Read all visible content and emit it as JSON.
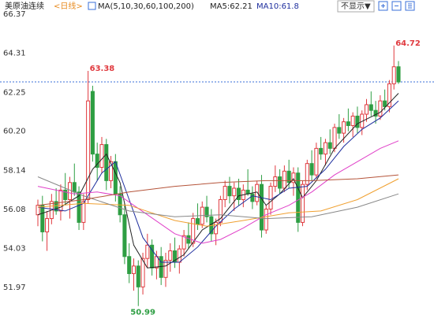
{
  "header": {
    "symbol": "美原油连续",
    "period": "<日线>",
    "ma_params": "MA(5,10,30,60,100,200)",
    "ma5": "MA5:62.21",
    "ma10": "MA10:61.8",
    "toggle": "不显示▼"
  },
  "chart_data": {
    "type": "candlestick",
    "ylim": [
      50.52,
      66.37
    ],
    "yticks": [
      66.37,
      64.31,
      62.25,
      {
        "value": 60.2,
        "label": "60.20"
      },
      58.14,
      56.08,
      54.03,
      51.97
    ],
    "grid": false,
    "up_color": "#e0393e",
    "down_color": "#2e9e43",
    "ohlc": [
      [
        55.8,
        56.6,
        55.2,
        56.3
      ],
      [
        56.3,
        56.8,
        54.4,
        54.9
      ],
      [
        54.9,
        56.0,
        53.9,
        55.6
      ],
      [
        55.6,
        56.9,
        55.3,
        56.5
      ],
      [
        56.5,
        57.2,
        55.8,
        56.0
      ],
      [
        56.0,
        57.4,
        55.5,
        57.1
      ],
      [
        57.1,
        58.0,
        56.3,
        56.6
      ],
      [
        56.6,
        57.8,
        55.6,
        57.5
      ],
      [
        57.5,
        58.5,
        56.8,
        57.0
      ],
      [
        57.0,
        57.3,
        55.0,
        55.4
      ],
      [
        55.4,
        56.9,
        55.0,
        56.5
      ],
      [
        56.6,
        63.38,
        56.4,
        61.8
      ],
      [
        62.3,
        62.6,
        58.6,
        59.0
      ],
      [
        59.0,
        59.6,
        57.6,
        58.3
      ],
      [
        58.3,
        59.9,
        58.0,
        59.5
      ],
      [
        59.5,
        59.8,
        57.1,
        57.6
      ],
      [
        57.6,
        58.9,
        57.2,
        58.6
      ],
      [
        58.6,
        59.0,
        56.5,
        56.9
      ],
      [
        56.9,
        57.3,
        55.4,
        55.8
      ],
      [
        55.8,
        56.4,
        53.2,
        53.6
      ],
      [
        53.6,
        54.3,
        52.2,
        52.7
      ],
      [
        52.7,
        53.5,
        51.8,
        53.1
      ],
      [
        53.1,
        53.4,
        50.99,
        52.0
      ],
      [
        52.0,
        53.8,
        51.6,
        53.5
      ],
      [
        53.5,
        54.8,
        53.0,
        54.2
      ],
      [
        54.2,
        54.5,
        52.6,
        53.0
      ],
      [
        53.0,
        53.9,
        52.4,
        53.6
      ],
      [
        53.6,
        54.1,
        52.1,
        52.5
      ],
      [
        52.5,
        53.8,
        52.0,
        53.4
      ],
      [
        53.4,
        54.3,
        52.8,
        53.9
      ],
      [
        53.9,
        54.6,
        53.0,
        53.3
      ],
      [
        53.3,
        54.2,
        52.7,
        54.0
      ],
      [
        54.0,
        55.0,
        53.6,
        54.7
      ],
      [
        54.7,
        55.4,
        54.0,
        54.3
      ],
      [
        54.3,
        55.9,
        54.1,
        55.6
      ],
      [
        55.6,
        56.4,
        55.0,
        55.3
      ],
      [
        55.3,
        56.5,
        55.1,
        56.2
      ],
      [
        56.2,
        56.8,
        55.4,
        55.7
      ],
      [
        55.7,
        56.1,
        54.4,
        54.8
      ],
      [
        54.8,
        55.6,
        54.2,
        55.4
      ],
      [
        55.4,
        56.8,
        55.2,
        56.6
      ],
      [
        56.6,
        57.6,
        56.2,
        57.3
      ],
      [
        57.3,
        57.8,
        56.4,
        56.8
      ],
      [
        56.8,
        57.5,
        56.0,
        57.2
      ],
      [
        57.2,
        57.7,
        56.3,
        56.6
      ],
      [
        56.6,
        57.4,
        56.2,
        57.1
      ],
      [
        57.1,
        58.2,
        56.8,
        56.9
      ],
      [
        56.9,
        57.3,
        56.1,
        56.5
      ],
      [
        56.5,
        57.6,
        56.3,
        57.4
      ],
      [
        57.4,
        57.9,
        54.6,
        55.0
      ],
      [
        55.0,
        56.3,
        54.8,
        56.1
      ],
      [
        56.1,
        57.5,
        55.8,
        57.3
      ],
      [
        57.3,
        58.4,
        57.0,
        57.8
      ],
      [
        57.8,
        58.2,
        56.9,
        57.2
      ],
      [
        57.2,
        58.4,
        57.0,
        58.1
      ],
      [
        58.1,
        58.7,
        57.2,
        57.5
      ],
      [
        57.5,
        58.3,
        56.8,
        58.0
      ],
      [
        58.0,
        58.3,
        54.9,
        55.4
      ],
      [
        55.4,
        57.6,
        55.2,
        57.4
      ],
      [
        57.4,
        58.7,
        57.1,
        58.5
      ],
      [
        58.5,
        59.2,
        57.6,
        57.9
      ],
      [
        57.9,
        59.6,
        57.7,
        59.3
      ],
      [
        59.3,
        59.9,
        58.7,
        59.0
      ],
      [
        59.0,
        59.8,
        58.4,
        59.6
      ],
      [
        59.6,
        60.3,
        59.0,
        59.3
      ],
      [
        59.3,
        60.6,
        59.1,
        60.4
      ],
      [
        60.4,
        61.1,
        59.8,
        60.1
      ],
      [
        60.1,
        60.9,
        59.6,
        60.7
      ],
      [
        60.7,
        61.4,
        60.2,
        60.5
      ],
      [
        60.5,
        61.2,
        59.9,
        61.0
      ],
      [
        61.0,
        61.5,
        60.1,
        60.4
      ],
      [
        60.4,
        61.3,
        60.0,
        61.1
      ],
      [
        61.1,
        61.9,
        60.7,
        61.6
      ],
      [
        61.6,
        62.3,
        61.0,
        61.3
      ],
      [
        61.3,
        61.8,
        60.6,
        61.0
      ],
      [
        61.0,
        62.1,
        60.8,
        61.8
      ],
      [
        61.8,
        62.4,
        61.3,
        61.5
      ],
      [
        61.5,
        62.9,
        61.2,
        62.7
      ],
      [
        62.7,
        64.72,
        62.4,
        63.6
      ],
      [
        63.6,
        63.9,
        62.7,
        62.8
      ]
    ],
    "lines": [
      {
        "color": "#222222",
        "x": [
          0,
          5,
          9,
          12,
          15,
          18,
          21,
          24,
          28,
          32,
          36,
          40,
          44,
          48,
          50,
          53,
          56,
          58,
          61,
          65,
          70,
          75,
          79
        ],
        "values": [
          55.8,
          56.2,
          56.8,
          58.2,
          59.0,
          57.5,
          54.2,
          53.0,
          53.1,
          53.7,
          55.0,
          55.6,
          56.8,
          57.0,
          56.3,
          56.9,
          57.7,
          56.7,
          57.6,
          59.3,
          60.6,
          61.2,
          62.2
        ]
      },
      {
        "color": "#1f2f9e",
        "x": [
          0,
          6,
          10,
          14,
          17,
          20,
          23,
          27,
          31,
          35,
          39,
          43,
          47,
          51,
          55,
          59,
          63,
          67,
          71,
          75,
          79
        ],
        "values": [
          56.2,
          56.0,
          56.4,
          58.0,
          58.6,
          56.6,
          54.6,
          53.3,
          53.3,
          54.1,
          55.2,
          56.1,
          56.8,
          56.6,
          57.2,
          57.3,
          58.2,
          59.4,
          60.3,
          60.9,
          61.8
        ]
      },
      {
        "color": "#e040c8",
        "x": [
          0,
          8,
          13,
          18,
          24,
          30,
          36,
          40,
          45,
          50,
          55,
          60,
          65,
          70,
          75,
          79
        ],
        "values": [
          57.3,
          56.9,
          57.0,
          56.8,
          55.8,
          54.8,
          54.3,
          54.5,
          55.1,
          55.8,
          56.3,
          57.0,
          57.9,
          58.6,
          59.3,
          59.7
        ]
      },
      {
        "color": "#f0a030",
        "x": [
          0,
          10,
          20,
          30,
          37,
          45,
          55,
          62,
          70,
          79
        ],
        "values": [
          56.2,
          56.4,
          56.3,
          55.5,
          55.2,
          55.5,
          55.9,
          56.0,
          56.6,
          57.7
        ]
      },
      {
        "color": "#888888",
        "x": [
          0,
          10,
          20,
          30,
          40,
          50,
          60,
          70,
          79
        ],
        "values": [
          57.8,
          56.8,
          56.0,
          55.7,
          55.8,
          55.6,
          55.7,
          56.2,
          56.9
        ]
      },
      {
        "color": "#b5543a",
        "x": [
          0,
          10,
          20,
          30,
          40,
          50,
          60,
          70,
          79
        ],
        "values": [
          56.3,
          56.6,
          57.0,
          57.3,
          57.5,
          57.6,
          57.6,
          57.7,
          57.9
        ]
      }
    ],
    "price_line": 62.8,
    "annotations": [
      "63.38",
      "64.72",
      "50.99"
    ]
  }
}
